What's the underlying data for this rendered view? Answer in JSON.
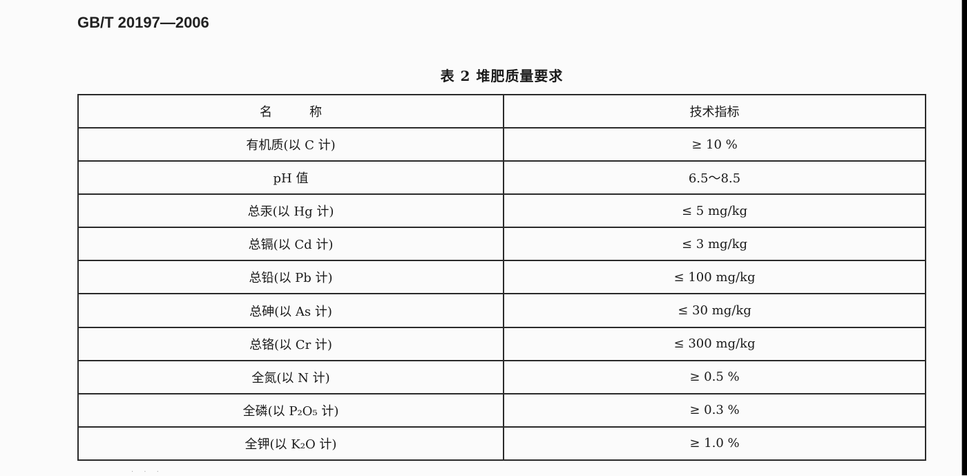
{
  "document": {
    "standard_number": "GB/T 20197—2006",
    "table_caption": "表 2   堆肥质量要求",
    "headers": [
      "名　　　称",
      "技术指标"
    ],
    "rows": [
      {
        "name": "有机质(以 C 计)",
        "value": "≥ 10 %"
      },
      {
        "name": "pH 值",
        "value": "6.5～8.5"
      },
      {
        "name": "总汞(以 Hg 计)",
        "value": "≤ 5 mg/kg"
      },
      {
        "name": "总镉(以 Cd 计)",
        "value": "≤ 3 mg/kg"
      },
      {
        "name": "总铅(以 Pb 计)",
        "value": "≤ 100 mg/kg"
      },
      {
        "name": "总砷(以 As 计)",
        "value": "≤ 30 mg/kg"
      },
      {
        "name": "总铬(以 Cr 计)",
        "value": "≤ 300 mg/kg"
      },
      {
        "name": "全氮(以 N 计)",
        "value": "≥ 0.5 %"
      },
      {
        "name": "全磷(以 P₂O₅ 计)",
        "value": "≥ 0.3 %"
      },
      {
        "name": "全钾(以 K₂O 计)",
        "value": "≥ 1.0 %"
      }
    ]
  }
}
